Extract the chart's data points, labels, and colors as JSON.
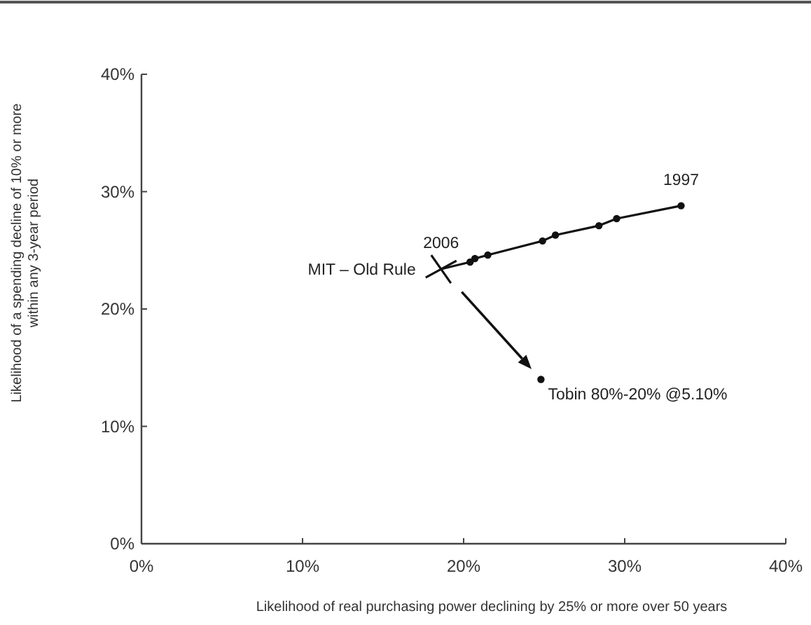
{
  "chart_data": {
    "type": "line",
    "xlabel": "Likelihood of real purchasing power declining by 25% or more over 50 years",
    "ylabel": "Likelihood of a spending decline of 10% or more\nwithin any 3-year period",
    "xlim": [
      0,
      40
    ],
    "ylim": [
      0,
      40
    ],
    "xticks": [
      {
        "value": 0,
        "label": "0%"
      },
      {
        "value": 10,
        "label": "10%"
      },
      {
        "value": 20,
        "label": "20%"
      },
      {
        "value": 30,
        "label": "30%"
      },
      {
        "value": 40,
        "label": "40%"
      }
    ],
    "yticks": [
      {
        "value": 0,
        "label": "0%"
      },
      {
        "value": 10,
        "label": "10%"
      },
      {
        "value": 20,
        "label": "20%"
      },
      {
        "value": 30,
        "label": "30%"
      },
      {
        "value": 40,
        "label": "40%"
      }
    ],
    "grid": false,
    "legend": false,
    "series": [
      {
        "name": "MIT – Old Rule",
        "color": "#111111",
        "marker": "none",
        "x": [
          18.6,
          20.4,
          20.7,
          21.5,
          24.9,
          25.7,
          28.4,
          29.5,
          33.5
        ],
        "values": [
          23.4,
          24.0,
          24.3,
          24.6,
          25.8,
          26.3,
          27.1,
          27.7,
          28.8
        ]
      },
      {
        "type": "scatter",
        "color": "#111111",
        "marker": "circle",
        "x": [
          20.4,
          20.7,
          21.5,
          24.9,
          25.7,
          28.4,
          29.5,
          33.5
        ],
        "values": [
          24.0,
          24.3,
          24.6,
          25.8,
          26.3,
          27.1,
          27.7,
          28.8
        ]
      },
      {
        "type": "scatter",
        "color": "#111111",
        "marker": "cross",
        "x": [
          18.6
        ],
        "values": [
          23.4
        ]
      },
      {
        "name": "Tobin 80%-20% @5.10%",
        "type": "scatter",
        "color": "#111111",
        "marker": "circle",
        "x": [
          24.8
        ],
        "values": [
          14.0
        ]
      }
    ],
    "annotations": [
      {
        "text": "2006",
        "x": 18.6,
        "y": 23.4
      },
      {
        "text": "1997",
        "x": 33.5,
        "y": 28.8
      }
    ]
  }
}
